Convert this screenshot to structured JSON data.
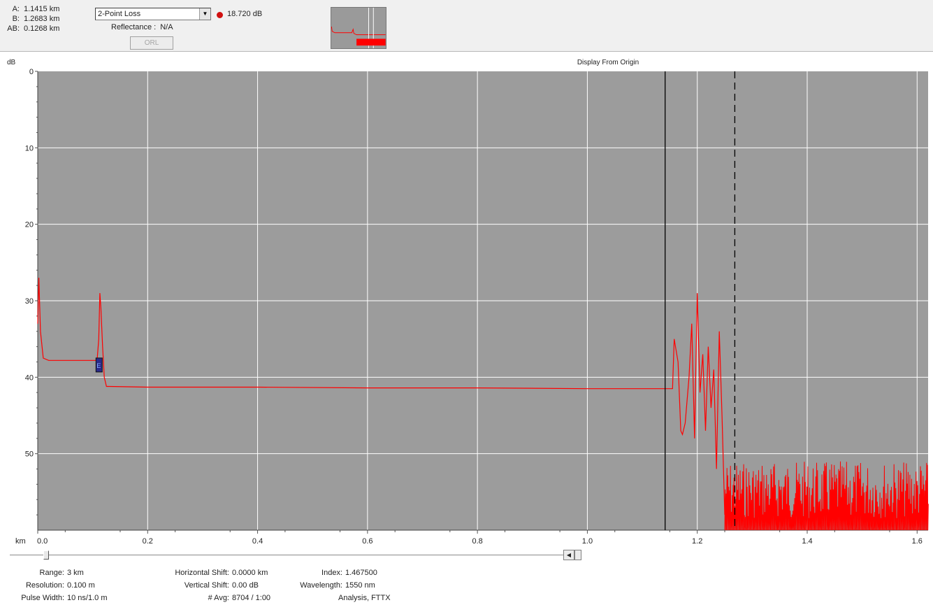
{
  "cursors": {
    "a_label": "A:",
    "a_value": "1.1415 km",
    "b_label": "B:",
    "b_value": "1.2683 km",
    "ab_label": "AB:",
    "ab_value": "0.1268 km"
  },
  "measurement": {
    "mode": "2-Point Loss",
    "loss": "18.720 dB",
    "loss_color": "#d01010",
    "reflectance_label": "Reflectance :",
    "reflectance_value": "N/A",
    "orl_label": "ORL"
  },
  "chart_data": {
    "type": "line",
    "title": "Display From Origin",
    "ylabel": "dB",
    "xlabel": "km",
    "x_ticks": [
      "0.0",
      "0.2",
      "0.4",
      "0.6",
      "0.8",
      "1.0",
      "1.2",
      "1.4",
      "1.6"
    ],
    "y_ticks": [
      "0",
      "10",
      "20",
      "30",
      "40",
      "50"
    ],
    "xlim": [
      0,
      1.62
    ],
    "ylim": [
      0,
      60
    ],
    "y_inverted": true,
    "grid": true,
    "background": "#9c9c9c",
    "trace_color": "#ff0000",
    "cursor_a_km": 1.1415,
    "cursor_b_km": 1.2683,
    "event_marker_km": 0.111,
    "event_marker_label": "E",
    "series": [
      {
        "x": [
          0.0,
          0.002,
          0.005,
          0.01,
          0.02,
          0.05,
          0.1,
          0.108,
          0.111,
          0.113,
          0.115,
          0.118,
          0.121,
          0.125,
          0.13,
          0.2,
          0.4,
          0.6,
          0.8,
          1.0,
          1.14,
          1.155,
          1.158,
          1.165,
          1.17,
          1.173,
          1.178,
          1.185,
          1.19,
          1.195,
          1.2,
          1.205,
          1.21,
          1.215,
          1.22,
          1.225,
          1.23,
          1.235,
          1.24,
          1.245,
          1.25
        ],
        "y": [
          33,
          27,
          34,
          37.5,
          37.8,
          37.8,
          37.8,
          37.8,
          35,
          29,
          31,
          36,
          40,
          41.2,
          41.2,
          41.3,
          41.3,
          41.4,
          41.4,
          41.5,
          41.5,
          41.5,
          35,
          38,
          47,
          47.5,
          46,
          40,
          33,
          48,
          29,
          42,
          37,
          47,
          36,
          44,
          39,
          52,
          34,
          45,
          58
        ]
      }
    ]
  },
  "params": {
    "range_label": "Range:",
    "range_value": "3 km",
    "resolution_label": "Resolution:",
    "resolution_value": "0.100 m",
    "pulse_label": "Pulse Width:",
    "pulse_value": "10 ns/1.0 m",
    "hshift_label": "Horizontal Shift:",
    "hshift_value": "0.0000 km",
    "vshift_label": "Vertical Shift:",
    "vshift_value": "0.00 dB",
    "avg_label": "# Avg:",
    "avg_value": "8704 / 1:00",
    "index_label": "Index:",
    "index_value": "1.467500",
    "wavelength_label": "Wavelength:",
    "wavelength_value": "1550 nm",
    "analysis_value": "Analysis, FTTX"
  }
}
